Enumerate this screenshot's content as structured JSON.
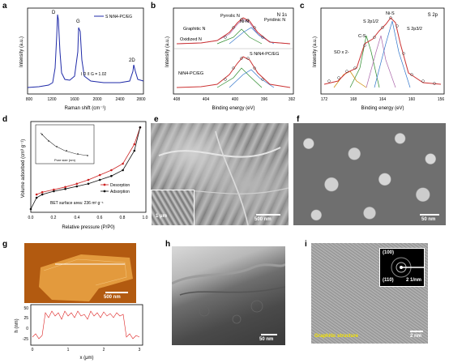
{
  "panels": {
    "a": {
      "letter": "a",
      "legend": "S NiN4-PC/EG",
      "peaks": [
        "D",
        "G",
        "2D"
      ],
      "ratio_label": "I D /I G = 1.02",
      "xlabel": "Raman shift (cm⁻¹)",
      "ylabel": "Intensity (a.u.)",
      "xticks": [
        "800",
        "1200",
        "1600",
        "2000",
        "2400",
        "2800"
      ]
    },
    "b": {
      "letter": "b",
      "title": "N 1s",
      "peaks": [
        "Pyrrolic N",
        "Ni-N",
        "Pyridinic N",
        "Graphitic N",
        "Oxidized N"
      ],
      "sample_top": "",
      "sample_mid": "S NiN4-PC/EG",
      "sample_bottom": "NiN4-PC/EG",
      "xlabel": "Binding energy (eV)",
      "ylabel": "Intensity (a.u.)",
      "xticks": [
        "408",
        "404",
        "400",
        "396",
        "392"
      ]
    },
    "c": {
      "letter": "c",
      "title": "S 2p",
      "peaks": [
        "Ni-S",
        "S 2p1/2",
        "S 2p3/2",
        "C-S",
        "SO x 2-"
      ],
      "xlabel": "Binding energy (eV)",
      "ylabel": "Intensity (a.u.)",
      "xticks": [
        "172",
        "168",
        "164",
        "160",
        "156"
      ]
    },
    "d": {
      "letter": "d",
      "legend": [
        "Desorption",
        "Adsorption"
      ],
      "bet": "BET surface area: 236 m² g⁻¹",
      "xlabel": "Relative pressure (P/P0)",
      "ylabel": "Volume adsorbed (cm³ g⁻¹)",
      "xticks": [
        "0.0",
        "0.2",
        "0.4",
        "0.6",
        "0.8",
        "1.0"
      ],
      "inset_xlabel": "Pore size (nm)"
    },
    "e": {
      "letter": "e",
      "scale_main": "500 nm",
      "scale_inset": "1 μm"
    },
    "f": {
      "letter": "f",
      "scale": "50 nm"
    },
    "g": {
      "letter": "g",
      "scale": "500 nm",
      "xlabel": "x (μm)",
      "ylabel": "h (nm)",
      "xticks": [
        "0",
        "1",
        "2",
        "3"
      ],
      "yticks": [
        "50",
        "25",
        "0",
        "-25"
      ]
    },
    "h": {
      "letter": "h",
      "scale": "50 nm"
    },
    "i": {
      "letter": "i",
      "scale_main": "2 nm",
      "scale_inset": "2 1/nm",
      "ring1": "(100)",
      "ring2": "(110)",
      "caption": "Graphitic structure"
    }
  },
  "chart_data": [
    {
      "type": "line",
      "title": "",
      "xlabel": "Raman shift (cm⁻¹)",
      "ylabel": "Intensity (a.u.)",
      "series": [
        {
          "name": "S NiN4-PC/EG",
          "x": [
            800,
            1000,
            1200,
            1300,
            1350,
            1400,
            1500,
            1580,
            1600,
            1700,
            2000,
            2400,
            2600,
            2690,
            2800,
            2900
          ],
          "y": [
            0.1,
            0.12,
            0.2,
            0.55,
            1.0,
            0.5,
            0.3,
            0.85,
            0.6,
            0.25,
            0.18,
            0.15,
            0.2,
            0.33,
            0.18,
            0.15
          ]
        }
      ]
    },
    {
      "type": "line",
      "xlabel": "Relative pressure (P/P0)",
      "ylabel": "Volume adsorbed (cm³ g⁻¹)",
      "series": [
        {
          "name": "Desorption",
          "x": [
            0.05,
            0.1,
            0.2,
            0.3,
            0.4,
            0.5,
            0.6,
            0.7,
            0.8,
            0.9,
            0.95
          ],
          "y": [
            55,
            62,
            70,
            78,
            88,
            100,
            115,
            130,
            150,
            210,
            262
          ]
        },
        {
          "name": "Adsorption",
          "x": [
            0.0,
            0.05,
            0.1,
            0.2,
            0.3,
            0.4,
            0.5,
            0.6,
            0.7,
            0.8,
            0.9,
            0.95
          ],
          "y": [
            10,
            45,
            55,
            65,
            72,
            80,
            88,
            100,
            112,
            130,
            190,
            262
          ]
        }
      ]
    }
  ]
}
